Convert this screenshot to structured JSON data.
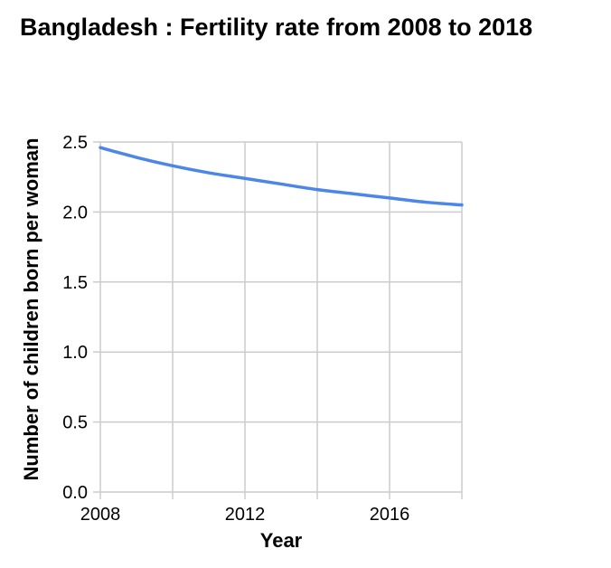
{
  "chart_data": {
    "type": "line",
    "title": "Bangladesh : Fertility rate from 2008 to 2018",
    "xlabel": "Year",
    "ylabel": "Number of children born per woman",
    "xlim": [
      2008,
      2018
    ],
    "ylim": [
      0,
      2.5
    ],
    "xticks": [
      2008,
      2012,
      2016
    ],
    "yticks": [
      "0.0",
      "0.5",
      "1.0",
      "1.5",
      "2.0",
      "2.5"
    ],
    "grid": true,
    "line_color": "#4c86e8",
    "series": [
      {
        "x": [
          2008,
          2009,
          2010,
          2011,
          2012,
          2013,
          2014,
          2015,
          2016,
          2017,
          2018
        ],
        "values": [
          2.46,
          2.39,
          2.33,
          2.28,
          2.24,
          2.2,
          2.16,
          2.13,
          2.1,
          2.07,
          2.05
        ]
      }
    ]
  }
}
